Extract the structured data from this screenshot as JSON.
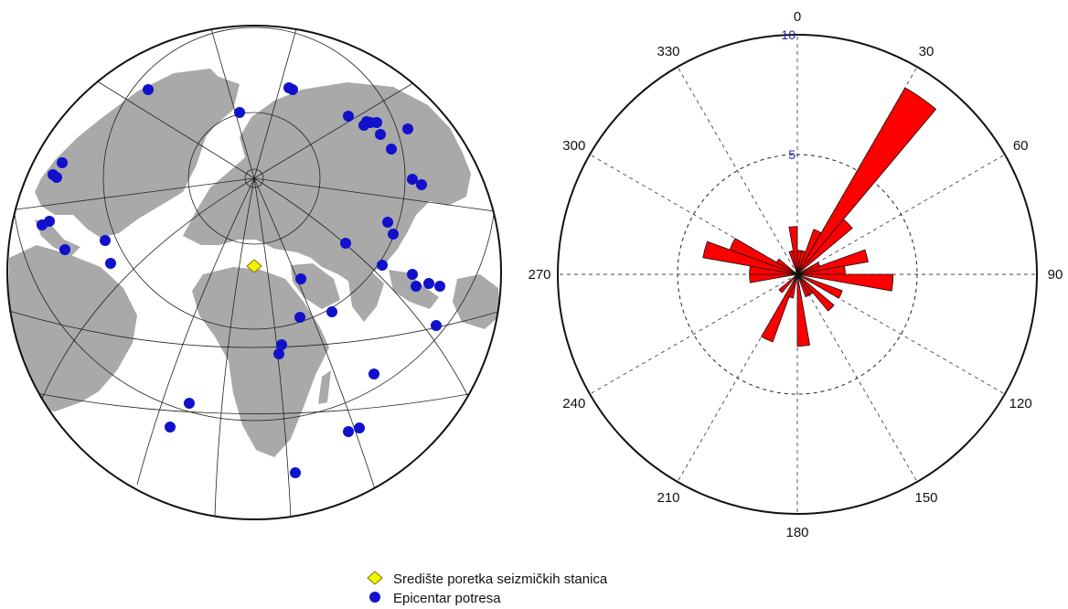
{
  "colors": {
    "land": "#a9a9a9",
    "ocean": "#ffffff",
    "grid": "#222222",
    "epicenter": "#1111cc",
    "station": "#f4f400",
    "petal": "#ff0000",
    "ring_label": "#2222aa"
  },
  "legend": {
    "station_label": "Središte poretka seizmičkih stanica",
    "epicenter_label": "Epicentar potresa"
  },
  "chart_data": [
    {
      "type": "map",
      "projection": "azimuthal equidistant centred on the station array",
      "markers": [
        {
          "kind": "station",
          "label": "Središte poretka seizmičkih stanica",
          "lat": 45.8,
          "lon": 16.0
        },
        {
          "kind": "epicenter",
          "label": "Epicentar potresa",
          "count": 55
        }
      ]
    },
    {
      "type": "rose",
      "angle_unit": "degrees",
      "direction": "clockwise",
      "zero_location": "top",
      "angle_ticks": [
        "0",
        "30",
        "60",
        "90",
        "120",
        "150",
        "180",
        "210",
        "240",
        "270",
        "300",
        "330"
      ],
      "radial_ticks": [
        "5",
        "10"
      ],
      "rlim": [
        0,
        10
      ],
      "bin_width_deg": 10,
      "bins": [
        {
          "azimuth": 5,
          "count": 1
        },
        {
          "azimuth": 15,
          "count": 1
        },
        {
          "azimuth": 25,
          "count": 2
        },
        {
          "azimuth": 35,
          "count": 9
        },
        {
          "azimuth": 45,
          "count": 3
        },
        {
          "azimuth": 65,
          "count": 1
        },
        {
          "azimuth": 75,
          "count": 3
        },
        {
          "azimuth": 85,
          "count": 2
        },
        {
          "azimuth": 95,
          "count": 4
        },
        {
          "azimuth": 115,
          "count": 2
        },
        {
          "azimuth": 135,
          "count": 2
        },
        {
          "azimuth": 145,
          "count": 1
        },
        {
          "azimuth": 155,
          "count": 1
        },
        {
          "azimuth": 175,
          "count": 3
        },
        {
          "azimuth": 195,
          "count": 1
        },
        {
          "azimuth": 205,
          "count": 3
        },
        {
          "azimuth": 225,
          "count": 1
        },
        {
          "azimuth": 265,
          "count": 2
        },
        {
          "azimuth": 275,
          "count": 2
        },
        {
          "azimuth": 285,
          "count": 4
        },
        {
          "azimuth": 295,
          "count": 3
        },
        {
          "azimuth": 305,
          "count": 1
        },
        {
          "azimuth": 345,
          "count": 1
        },
        {
          "azimuth": 355,
          "count": 2
        }
      ]
    }
  ]
}
